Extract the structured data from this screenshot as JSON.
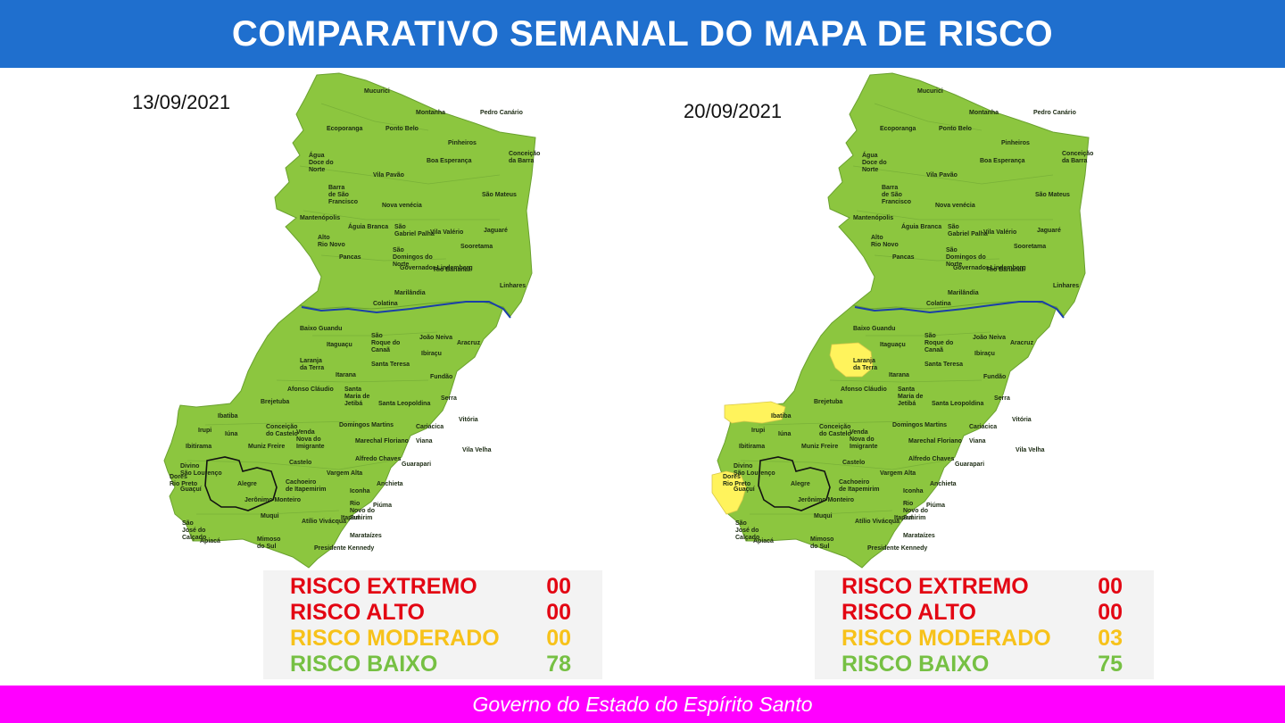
{
  "header": {
    "title": "COMPARATIVO SEMANAL DO MAPA DE RISCO"
  },
  "colors": {
    "header_bg": "#1f6fce",
    "footer_bg": "#ff00ff",
    "risk_low": "#8cc63f",
    "risk_moderate": "#fff35c",
    "river": "#1a3fa8"
  },
  "left_panel": {
    "date": "13/09/2021",
    "legend": {
      "extremo": {
        "label": "RISCO EXTREMO",
        "value": "00"
      },
      "alto": {
        "label": "RISCO ALTO",
        "value": "00"
      },
      "moderado": {
        "label": "RISCO MODERADO",
        "value": "00"
      },
      "baixo": {
        "label": "RISCO BAIXO",
        "value": "78"
      }
    },
    "moderate_municipalities": []
  },
  "right_panel": {
    "date": "20/09/2021",
    "legend": {
      "extremo": {
        "label": "RISCO EXTREMO",
        "value": "00"
      },
      "alto": {
        "label": "RISCO ALTO",
        "value": "00"
      },
      "moderado": {
        "label": "RISCO MODERADO",
        "value": "03"
      },
      "baixo": {
        "label": "RISCO BAIXO",
        "value": "75"
      }
    },
    "moderate_municipalities": [
      "Laranja da Terra",
      "Ibatiba",
      "Guaçuí"
    ]
  },
  "map_labels": {
    "mucurici": "Mucurici",
    "montanha": "Montanha",
    "pedro_canario": "Pedro Canário",
    "ecoporanga": "Ecoporanga",
    "ponto_belo": "Ponto Belo",
    "pinheiros": "Pinheiros",
    "conceicao_barra": "Conceição da Barra",
    "agua_doce": "Água Doce do Norte",
    "boa_esperanca": "Boa Esperança",
    "vila_pavao": "Vila Pavão",
    "barra_sao_francisco": "Barra de São Francisco",
    "sao_mateus": "São Mateus",
    "nova_venecia": "Nova venécia",
    "mantenopolis": "Mantenópolis",
    "aguia_branca": "Águia Branca",
    "sao_gabriel": "São Gabriel Palha",
    "vila_valerio": "Vila Valério",
    "jaguare": "Jaguaré",
    "alto_rio_novo": "Alto Rio Novo",
    "sooretama": "Sooretama",
    "sao_domingos": "São Domingos do Norte",
    "pancas": "Pancas",
    "governador": "Governador Lindemberg",
    "rio_bananal": "Rio Bananal",
    "linhares": "Linhares",
    "marilandia": "Marilândia",
    "colatina": "Colatina",
    "baixo_guandu": "Baixo Guandu",
    "sao_roque": "São Roque do Canaã",
    "joao_neiva": "João Neiva",
    "aracruz": "Aracruz",
    "itaguacu": "Itaguaçu",
    "ibiracu": "Ibiraçu",
    "laranja_terra": "Laranja da Terra",
    "santa_teresa": "Santa Teresa",
    "itarana": "Itarana",
    "fundao": "Fundão",
    "afonso_claudio": "Afonso Cláudio",
    "santa_maria": "Santa Maria de Jetibá",
    "serra": "Serra",
    "brejetuba": "Brejetuba",
    "santa_leopoldina": "Santa Leopoldina",
    "ibatiba": "Ibatiba",
    "cariacica": "Cariacica",
    "vitoria": "Vitória",
    "domingos_martins": "Domingos Martins",
    "conceicao_castelo": "Conceição do Castelo",
    "venda_nova": "Venda Nova do Imigrante",
    "irupi": "Irupi",
    "iuna": "Iúna",
    "viana": "Viana",
    "vila_velha": "Vila Velha",
    "ibitirama": "Ibitirama",
    "muniz_freire": "Muniz Freire",
    "marechal_floriano": "Marechal Floriano",
    "divino": "Divino São Lourenço",
    "alfredo_chaves": "Alfredo Chaves",
    "guarapari": "Guarapari",
    "castelo": "Castelo",
    "vargem_alta": "Vargem Alta",
    "dores_rio_preto": "Dores Rio Preto",
    "alegre": "Alegre",
    "cachoeiro": "Cachoeiro de Itapemirim",
    "anchieta": "Anchieta",
    "guacui": "Guaçuí",
    "jeronimo_monteiro": "Jerônimo Monteiro",
    "iconha": "Iconha",
    "rio_novo_sul": "Rio Novo do Sul",
    "piuma": "Piúma",
    "muqui": "Muqui",
    "atilio_vivacqua": "Atílio Vivácqua",
    "itapemirim": "Itapemirim",
    "sao_jose_calcado": "São José do Calçado",
    "mimoso_sul": "Mimoso do Sul",
    "marataizes": "Marataízes",
    "apiaca": "Apiacá",
    "presidente_kennedy": "Presidente Kennedy"
  },
  "footer": {
    "text": "Governo do Estado do Espírito Santo"
  }
}
